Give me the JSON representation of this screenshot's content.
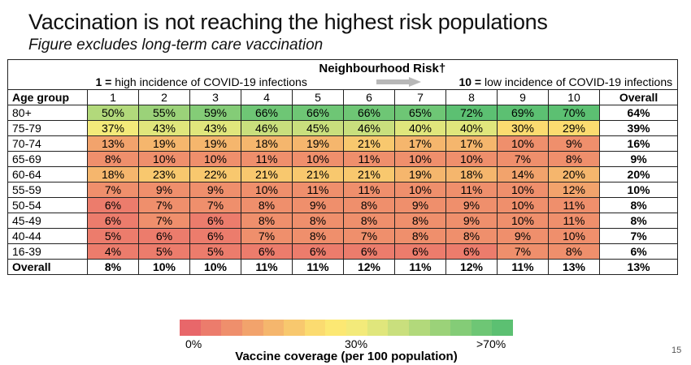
{
  "title": "Vaccination is not reaching the highest risk populations",
  "subtitle": "Figure excludes long-term care vaccination",
  "table": {
    "group_header": "Neighbourhood Risk†",
    "high_num": "1 =",
    "high_text": " high incidence of COVID-19 infections",
    "low_num": "10 =",
    "low_text": " low incidence of COVID-19 infections",
    "columns": [
      "Age group",
      "1",
      "2",
      "3",
      "4",
      "5",
      "6",
      "7",
      "8",
      "9",
      "10",
      "Overall"
    ],
    "rows": [
      {
        "age": "80+",
        "values": [
          50,
          55,
          59,
          66,
          66,
          66,
          65,
          72,
          69,
          70
        ],
        "overall": 64
      },
      {
        "age": "75-79",
        "values": [
          37,
          43,
          43,
          46,
          45,
          46,
          40,
          40,
          30,
          29
        ],
        "overall": 39
      },
      {
        "age": "70-74",
        "values": [
          13,
          19,
          19,
          18,
          19,
          21,
          17,
          17,
          10,
          9
        ],
        "overall": 16
      },
      {
        "age": "65-69",
        "values": [
          8,
          10,
          10,
          11,
          10,
          11,
          10,
          10,
          7,
          8
        ],
        "overall": 9
      },
      {
        "age": "60-64",
        "values": [
          18,
          23,
          22,
          21,
          21,
          21,
          19,
          18,
          14,
          20
        ],
        "overall": 20
      },
      {
        "age": "55-59",
        "values": [
          7,
          9,
          9,
          10,
          11,
          11,
          10,
          11,
          10,
          12
        ],
        "overall": 10
      },
      {
        "age": "50-54",
        "values": [
          6,
          7,
          7,
          8,
          9,
          8,
          9,
          9,
          10,
          11
        ],
        "overall": 8
      },
      {
        "age": "45-49",
        "values": [
          6,
          7,
          6,
          8,
          8,
          8,
          8,
          9,
          10,
          11
        ],
        "overall": 8
      },
      {
        "age": "40-44",
        "values": [
          5,
          6,
          6,
          7,
          8,
          7,
          8,
          8,
          9,
          10
        ],
        "overall": 7
      },
      {
        "age": "16-39",
        "values": [
          4,
          5,
          5,
          6,
          6,
          6,
          6,
          6,
          7,
          8
        ],
        "overall": 6
      }
    ],
    "overall_row": {
      "age": "Overall",
      "values": [
        8,
        10,
        10,
        11,
        11,
        12,
        11,
        12,
        11,
        13
      ],
      "overall": 13
    }
  },
  "legend": {
    "min_label": "0%",
    "mid_label": "30%",
    "max_label": ">70%",
    "title": "Vaccine coverage (per 100 population)",
    "colors": [
      "#e8676a",
      "#ec7c6c",
      "#ef8f6c",
      "#f2a36c",
      "#f5b66d",
      "#f8c86e",
      "#fbdb70",
      "#fce873",
      "#f3ea7a",
      "#e0e67c",
      "#c9df7d",
      "#b2d97b",
      "#9bd279",
      "#84cc77",
      "#6ec675",
      "#5cc072"
    ]
  },
  "page_number": "15"
}
